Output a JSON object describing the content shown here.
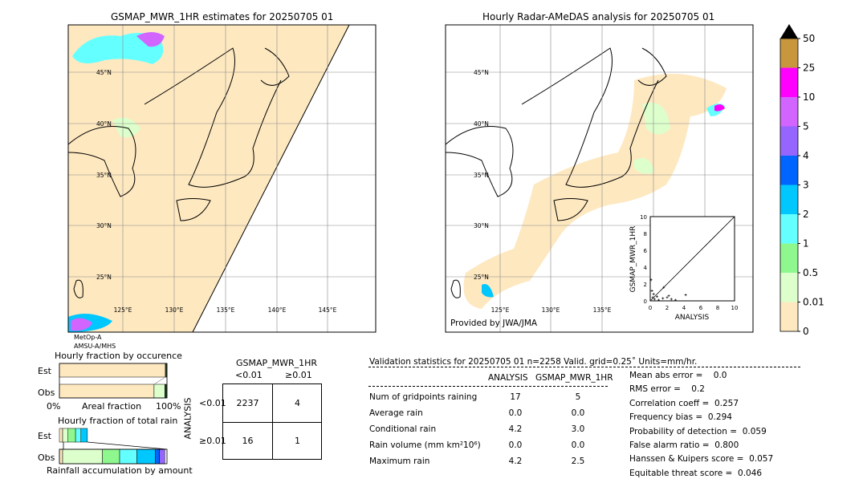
{
  "left_map": {
    "title": "GSMAP_MWR_1HR estimates for 20250705 01",
    "lat_labels": [
      "45°N",
      "40°N",
      "35°N",
      "30°N",
      "25°N"
    ],
    "lon_labels": [
      "125°E",
      "130°E",
      "135°E",
      "140°E",
      "145°E"
    ],
    "satellite": "MetOp-A",
    "sensor": "AMSU-A/MHS"
  },
  "right_map": {
    "title": "Hourly Radar-AMeDAS analysis for 20250705 01",
    "lat_labels": [
      "45°N",
      "40°N",
      "35°N",
      "30°N",
      "25°N"
    ],
    "lon_labels": [
      "125°E",
      "130°E",
      "135°E"
    ],
    "credit": "Provided by JWA/JMA"
  },
  "colorbar": {
    "levels": [
      "0",
      "0.01",
      "0.5",
      "1",
      "2",
      "3",
      "4",
      "5",
      "10",
      "25",
      "50"
    ],
    "colors": [
      "#fee8c0",
      "#dcffcc",
      "#8ef88e",
      "#64ffff",
      "#00c8ff",
      "#0064ff",
      "#9664ff",
      "#d264ff",
      "#ff00ff",
      "#c8963c"
    ],
    "extend_color": "#000000"
  },
  "chart_data": [
    {
      "type": "scatter",
      "xlabel": "ANALYSIS",
      "ylabel": "GSMAP_MWR_1HR",
      "xlim": [
        0,
        10
      ],
      "ylim": [
        0,
        10
      ],
      "xticks": [
        "0",
        "2",
        "4",
        "6",
        "8",
        "10"
      ],
      "yticks": [
        "0",
        "2",
        "4",
        "6",
        "8",
        "10"
      ],
      "points": [
        [
          0.1,
          2.5
        ],
        [
          0.2,
          1.2
        ],
        [
          0.3,
          0.4
        ],
        [
          0.5,
          0.2
        ],
        [
          1,
          0.1
        ],
        [
          1.5,
          0.3
        ],
        [
          1.6,
          1.6
        ],
        [
          2,
          0.4
        ],
        [
          2.2,
          0.6
        ],
        [
          2.5,
          0.2
        ],
        [
          3,
          0.1
        ],
        [
          4.2,
          0.7
        ],
        [
          0.8,
          0.5
        ],
        [
          0.4,
          0.8
        ]
      ]
    },
    {
      "type": "bar",
      "title": "Hourly fraction by occurence",
      "xlabel": "Areal fraction",
      "xticks": [
        "0%",
        "100%"
      ],
      "categories": [
        "Est",
        "Obs"
      ],
      "series": [
        {
          "values": [
            0.985,
            0.88
          ]
        },
        {
          "values": [
            0.005,
            0.1
          ]
        },
        {
          "values": [
            0.01,
            0.02
          ]
        }
      ]
    },
    {
      "type": "bar",
      "title": "Hourly fraction of total rain",
      "xlabel": "Rainfall accumulation by amount",
      "categories": [
        "Est",
        "Obs"
      ],
      "series": [
        {
          "values": [
            0.03,
            0.03
          ]
        },
        {
          "values": [
            0.05,
            0.37
          ]
        },
        {
          "values": [
            0.07,
            0.16
          ]
        },
        {
          "values": [
            0.05,
            0.16
          ]
        },
        {
          "values": [
            0.06,
            0.17
          ]
        },
        {
          "values": [
            0,
            0.04
          ]
        },
        {
          "values": [
            0,
            0.05
          ]
        }
      ]
    }
  ],
  "contingency": {
    "col_title": "GSMAP_MWR_1HR",
    "row_title": "ANALYSIS",
    "col_labels": [
      "<0.01",
      "≥0.01"
    ],
    "row_labels": [
      "<0.01",
      "≥0.01"
    ],
    "cells": [
      [
        "2237",
        "4"
      ],
      [
        "16",
        "1"
      ]
    ]
  },
  "stats": {
    "header": "Validation statistics for 20250705 01  n=2258 Valid. grid=0.25˚ Units=mm/hr.",
    "col_analysis": "ANALYSIS",
    "col_gsmap": "GSMAP_MWR_1HR",
    "rows": [
      {
        "label": "Num of gridpoints raining",
        "a": "17",
        "g": "5"
      },
      {
        "label": "Average rain",
        "a": "0.0",
        "g": "0.0"
      },
      {
        "label": "Conditional rain",
        "a": "4.2",
        "g": "3.0"
      },
      {
        "label": "Rain volume (mm km²10⁶)",
        "a": "0.0",
        "g": "0.0"
      },
      {
        "label": "Maximum rain",
        "a": "4.2",
        "g": "2.5"
      }
    ],
    "scores": [
      "Mean abs error =    0.0",
      "RMS error =    0.2",
      "Correlation coeff =  0.257",
      "Frequency bias =  0.294",
      "Probability of detection =  0.059",
      "False alarm ratio =  0.800",
      "Hanssen & Kuipers score =  0.057",
      "Equitable threat score =  0.046"
    ]
  }
}
